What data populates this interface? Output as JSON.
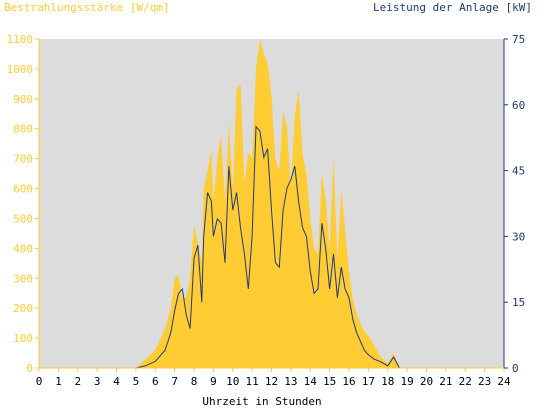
{
  "chart_data": {
    "type": "area",
    "ylabel_left": "Bestrahlungsstärke [W/qm]",
    "ylabel_right": "Leistung der Anlage [kW]",
    "xlabel": "Uhrzeit in Stunden",
    "xlim": [
      0,
      24
    ],
    "ylim_left": [
      0,
      1100
    ],
    "ylim_right": [
      0,
      75
    ],
    "x_ticks": [
      "0",
      "1",
      "2",
      "3",
      "4",
      "5",
      "6",
      "7",
      "8",
      "9",
      "10",
      "11",
      "12",
      "13",
      "14",
      "15",
      "16",
      "17",
      "18",
      "19",
      "20",
      "21",
      "22",
      "23",
      "24"
    ],
    "y_ticks_left": [
      "0",
      "100",
      "200",
      "300",
      "400",
      "500",
      "600",
      "700",
      "800",
      "900",
      "1000",
      "1100"
    ],
    "y_ticks_right": [
      "0",
      "15",
      "30",
      "45",
      "60",
      "75"
    ],
    "grid": false,
    "colors": {
      "irradiance_fill": "#ffcc33",
      "power_line": "#1f3a7a",
      "plot_background": "#dcdcdc",
      "left_axis_text": "#ffcc33",
      "right_axis_text": "#1f3a7a"
    },
    "series": [
      {
        "axis": "left",
        "style": "area",
        "x": [
          0,
          5.0,
          5.5,
          6.0,
          6.5,
          6.8,
          7.0,
          7.2,
          7.4,
          7.6,
          7.8,
          8.0,
          8.2,
          8.4,
          8.5,
          8.7,
          8.9,
          9.0,
          9.2,
          9.4,
          9.6,
          9.8,
          10.0,
          10.2,
          10.4,
          10.6,
          10.8,
          11.0,
          11.2,
          11.4,
          11.6,
          11.8,
          12.0,
          12.2,
          12.4,
          12.6,
          12.8,
          13.0,
          13.2,
          13.4,
          13.6,
          13.8,
          14.0,
          14.2,
          14.4,
          14.6,
          14.8,
          15.0,
          15.2,
          15.4,
          15.6,
          15.8,
          16.0,
          16.2,
          16.4,
          16.6,
          16.8,
          17.0,
          17.3,
          17.6,
          18.0,
          18.3,
          18.6,
          18.9,
          19.2,
          19.4,
          19.6,
          19.8,
          20.0,
          24
        ],
        "values": [
          0,
          0,
          30,
          60,
          130,
          200,
          300,
          310,
          230,
          240,
          300,
          480,
          420,
          350,
          600,
          660,
          730,
          560,
          700,
          780,
          560,
          820,
          600,
          930,
          950,
          620,
          720,
          700,
          1000,
          1100,
          1050,
          1020,
          910,
          700,
          660,
          860,
          800,
          600,
          840,
          930,
          720,
          650,
          500,
          400,
          380,
          650,
          560,
          400,
          700,
          360,
          600,
          460,
          320,
          230,
          180,
          150,
          120,
          110,
          75,
          40,
          15,
          50,
          0,
          0,
          0,
          0,
          0,
          0,
          0,
          0
        ]
      },
      {
        "axis": "right",
        "style": "line",
        "x": [
          0,
          5.0,
          5.5,
          6.0,
          6.5,
          6.8,
          7.0,
          7.2,
          7.4,
          7.6,
          7.8,
          8.0,
          8.2,
          8.4,
          8.5,
          8.7,
          8.9,
          9.0,
          9.2,
          9.4,
          9.6,
          9.8,
          10.0,
          10.2,
          10.4,
          10.6,
          10.8,
          11.0,
          11.2,
          11.4,
          11.6,
          11.8,
          12.0,
          12.2,
          12.4,
          12.6,
          12.8,
          13.0,
          13.2,
          13.4,
          13.6,
          13.8,
          14.0,
          14.2,
          14.4,
          14.6,
          14.8,
          15.0,
          15.2,
          15.4,
          15.6,
          15.8,
          16.0,
          16.2,
          16.4,
          16.6,
          16.8,
          17.0,
          17.3,
          17.6,
          18.0,
          18.3,
          18.6,
          18.9,
          19.2,
          19.4,
          19.6,
          19.8,
          20.0,
          24
        ],
        "values": [
          0,
          0,
          0.5,
          1.5,
          4,
          8,
          13,
          17,
          18,
          12,
          9,
          25,
          28,
          15,
          30,
          40,
          38,
          30,
          34,
          33,
          24,
          46,
          36,
          40,
          32,
          26,
          18,
          30,
          55,
          54,
          48,
          50,
          36,
          24,
          23,
          36,
          41,
          43,
          46,
          38,
          32,
          30,
          22,
          17,
          18,
          33,
          27,
          18,
          26,
          16,
          23,
          18,
          16,
          11,
          8,
          6,
          4,
          3,
          2,
          1.5,
          0.5,
          2.5,
          0,
          0,
          0,
          0,
          0,
          0,
          0,
          0
        ]
      }
    ]
  }
}
